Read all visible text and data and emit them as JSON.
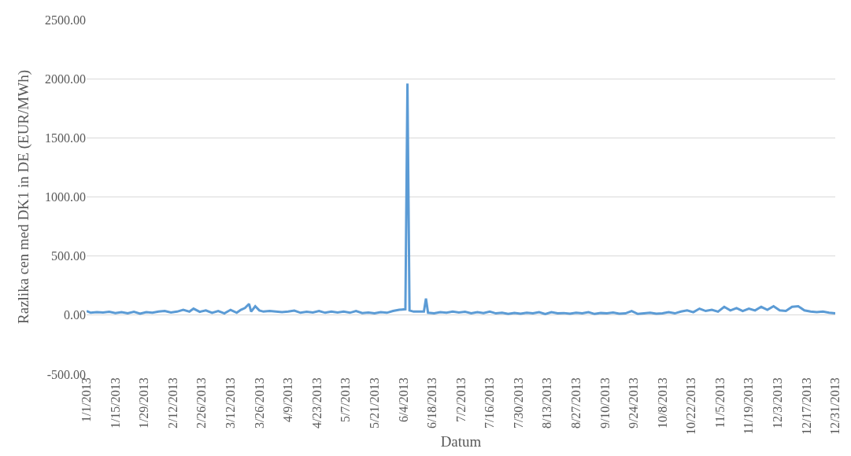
{
  "chart_data": {
    "type": "line",
    "xlabel": "Datum",
    "ylabel": "Razlika cen med DK1 in DE (EUR/MWh)",
    "x": [
      "2013-01-01",
      "2013-01-03",
      "2013-01-06",
      "2013-01-09",
      "2013-01-12",
      "2013-01-15",
      "2013-01-18",
      "2013-01-21",
      "2013-01-24",
      "2013-01-27",
      "2013-01-30",
      "2013-02-02",
      "2013-02-05",
      "2013-02-08",
      "2013-02-11",
      "2013-02-14",
      "2013-02-17",
      "2013-02-20",
      "2013-02-22",
      "2013-02-25",
      "2013-02-28",
      "2013-03-03",
      "2013-03-06",
      "2013-03-09",
      "2013-03-12",
      "2013-03-15",
      "2013-03-17",
      "2013-03-19",
      "2013-03-21",
      "2013-03-22",
      "2013-03-24",
      "2013-03-26",
      "2013-03-28",
      "2013-03-31",
      "2013-04-03",
      "2013-04-06",
      "2013-04-09",
      "2013-04-12",
      "2013-04-15",
      "2013-04-18",
      "2013-04-21",
      "2013-04-24",
      "2013-04-27",
      "2013-04-30",
      "2013-05-03",
      "2013-05-06",
      "2013-05-09",
      "2013-05-12",
      "2013-05-15",
      "2013-05-18",
      "2013-05-21",
      "2013-05-24",
      "2013-05-27",
      "2013-05-30",
      "2013-06-02",
      "2013-06-05",
      "2013-06-06",
      "2013-06-07",
      "2013-06-09",
      "2013-06-12",
      "2013-06-14",
      "2013-06-15",
      "2013-06-16",
      "2013-06-19",
      "2013-06-22",
      "2013-06-25",
      "2013-06-28",
      "2013-07-01",
      "2013-07-04",
      "2013-07-07",
      "2013-07-10",
      "2013-07-13",
      "2013-07-16",
      "2013-07-19",
      "2013-07-22",
      "2013-07-25",
      "2013-07-28",
      "2013-07-31",
      "2013-08-03",
      "2013-08-06",
      "2013-08-09",
      "2013-08-12",
      "2013-08-15",
      "2013-08-18",
      "2013-08-21",
      "2013-08-24",
      "2013-08-27",
      "2013-08-30",
      "2013-09-02",
      "2013-09-05",
      "2013-09-08",
      "2013-09-11",
      "2013-09-14",
      "2013-09-17",
      "2013-09-20",
      "2013-09-23",
      "2013-09-26",
      "2013-09-29",
      "2013-10-02",
      "2013-10-05",
      "2013-10-08",
      "2013-10-11",
      "2013-10-14",
      "2013-10-17",
      "2013-10-20",
      "2013-10-23",
      "2013-10-26",
      "2013-10-29",
      "2013-11-01",
      "2013-11-04",
      "2013-11-07",
      "2013-11-10",
      "2013-11-13",
      "2013-11-16",
      "2013-11-19",
      "2013-11-22",
      "2013-11-25",
      "2013-11-28",
      "2013-12-01",
      "2013-12-04",
      "2013-12-07",
      "2013-12-10",
      "2013-12-13",
      "2013-12-16",
      "2013-12-19",
      "2013-12-22",
      "2013-12-25",
      "2013-12-28",
      "2013-12-31"
    ],
    "series": [
      {
        "color": "#5b9bd5",
        "values": [
          35,
          20,
          25,
          22,
          28,
          18,
          25,
          15,
          28,
          12,
          25,
          20,
          30,
          35,
          22,
          30,
          45,
          30,
          55,
          28,
          40,
          20,
          35,
          15,
          45,
          20,
          45,
          60,
          95,
          30,
          75,
          40,
          30,
          35,
          30,
          25,
          30,
          38,
          20,
          28,
          22,
          35,
          20,
          30,
          22,
          30,
          20,
          35,
          18,
          22,
          15,
          25,
          20,
          35,
          45,
          50,
          1960,
          40,
          30,
          30,
          30,
          140,
          20,
          15,
          25,
          20,
          30,
          22,
          28,
          15,
          25,
          18,
          30,
          15,
          20,
          10,
          18,
          12,
          20,
          15,
          25,
          10,
          25,
          15,
          18,
          12,
          20,
          15,
          25,
          10,
          18,
          15,
          22,
          12,
          15,
          35,
          10,
          15,
          20,
          12,
          15,
          25,
          15,
          30,
          40,
          25,
          55,
          35,
          45,
          30,
          70,
          40,
          60,
          35,
          55,
          40,
          70,
          45,
          75,
          40,
          35,
          70,
          75,
          40,
          30,
          25,
          30,
          20,
          15
        ]
      }
    ],
    "xlim": [
      "2013-01-01",
      "2013-12-31"
    ],
    "xticks": [
      {
        "value": "2013-01-01",
        "label": "1/1/2013"
      },
      {
        "value": "2013-01-15",
        "label": "1/15/2013"
      },
      {
        "value": "2013-01-29",
        "label": "1/29/2013"
      },
      {
        "value": "2013-02-12",
        "label": "2/12/2013"
      },
      {
        "value": "2013-02-26",
        "label": "2/26/2013"
      },
      {
        "value": "2013-03-12",
        "label": "3/12/2013"
      },
      {
        "value": "2013-03-26",
        "label": "3/26/2013"
      },
      {
        "value": "2013-04-09",
        "label": "4/9/2013"
      },
      {
        "value": "2013-04-23",
        "label": "4/23/2013"
      },
      {
        "value": "2013-05-07",
        "label": "5/7/2013"
      },
      {
        "value": "2013-05-21",
        "label": "5/21/2013"
      },
      {
        "value": "2013-06-04",
        "label": "6/4/2013"
      },
      {
        "value": "2013-06-18",
        "label": "6/18/2013"
      },
      {
        "value": "2013-07-02",
        "label": "7/2/2013"
      },
      {
        "value": "2013-07-16",
        "label": "7/16/2013"
      },
      {
        "value": "2013-07-30",
        "label": "7/30/2013"
      },
      {
        "value": "2013-08-13",
        "label": "8/13/2013"
      },
      {
        "value": "2013-08-27",
        "label": "8/27/2013"
      },
      {
        "value": "2013-09-10",
        "label": "9/10/2013"
      },
      {
        "value": "2013-09-24",
        "label": "9/24/2013"
      },
      {
        "value": "2013-10-08",
        "label": "10/8/2013"
      },
      {
        "value": "2013-10-22",
        "label": "10/22/2013"
      },
      {
        "value": "2013-11-05",
        "label": "11/5/2013"
      },
      {
        "value": "2013-11-19",
        "label": "11/19/2013"
      },
      {
        "value": "2013-12-03",
        "label": "12/3/2013"
      },
      {
        "value": "2013-12-17",
        "label": "12/17/2013"
      },
      {
        "value": "2013-12-31",
        "label": "12/31/2013"
      }
    ],
    "ylim": [
      -500,
      2500
    ],
    "yticks": [
      {
        "value": -500,
        "label": "-500.00"
      },
      {
        "value": 0,
        "label": "0.00"
      },
      {
        "value": 500,
        "label": "500.00"
      },
      {
        "value": 1000,
        "label": "1000.00"
      },
      {
        "value": 1500,
        "label": "1500.00"
      },
      {
        "value": 2000,
        "label": "2000.00"
      },
      {
        "value": 2500,
        "label": "2500.00"
      }
    ],
    "grid": "y",
    "legend": false,
    "marker": "none",
    "line_style": "solid"
  }
}
